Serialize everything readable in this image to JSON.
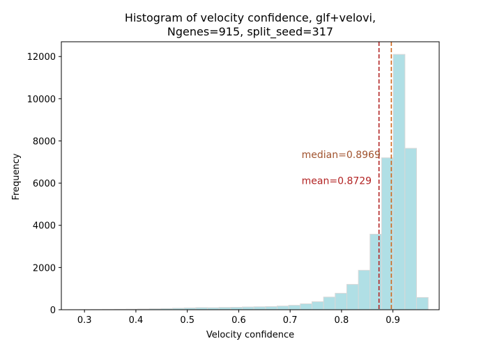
{
  "chart_data": {
    "type": "bar",
    "title_line1": "Histogram of velocity confidence, glf+velovi,",
    "title_line2": "Ngenes=915, split_seed=317",
    "xlabel": "Velocity confidence",
    "ylabel": "Frequency",
    "xlim": [
      0.255,
      0.99
    ],
    "ylim": [
      0,
      12700
    ],
    "xticks": [
      0.3,
      0.4,
      0.5,
      0.6,
      0.7,
      0.8,
      0.9
    ],
    "yticks": [
      0,
      2000,
      4000,
      6000,
      8000,
      10000,
      12000
    ],
    "bar_color": "#b0dfe5",
    "bar_edge_color": "#d8d8d8",
    "bin_width": 0.0226,
    "bins": [
      {
        "x0": 0.2679,
        "value": 3
      },
      {
        "x0": 0.2905,
        "value": 5
      },
      {
        "x0": 0.3131,
        "value": 8
      },
      {
        "x0": 0.3357,
        "value": 12
      },
      {
        "x0": 0.3583,
        "value": 18
      },
      {
        "x0": 0.3809,
        "value": 25
      },
      {
        "x0": 0.4035,
        "value": 35
      },
      {
        "x0": 0.4261,
        "value": 45
      },
      {
        "x0": 0.4487,
        "value": 55
      },
      {
        "x0": 0.4713,
        "value": 70
      },
      {
        "x0": 0.4939,
        "value": 85
      },
      {
        "x0": 0.5165,
        "value": 100
      },
      {
        "x0": 0.5391,
        "value": 95
      },
      {
        "x0": 0.5617,
        "value": 110
      },
      {
        "x0": 0.5843,
        "value": 115
      },
      {
        "x0": 0.6069,
        "value": 130
      },
      {
        "x0": 0.6295,
        "value": 140
      },
      {
        "x0": 0.6521,
        "value": 150
      },
      {
        "x0": 0.6747,
        "value": 175
      },
      {
        "x0": 0.6973,
        "value": 210
      },
      {
        "x0": 0.7199,
        "value": 280
      },
      {
        "x0": 0.7425,
        "value": 380
      },
      {
        "x0": 0.7651,
        "value": 600
      },
      {
        "x0": 0.7877,
        "value": 780
      },
      {
        "x0": 0.8103,
        "value": 1200
      },
      {
        "x0": 0.8329,
        "value": 1870
      },
      {
        "x0": 0.8555,
        "value": 3580
      },
      {
        "x0": 0.8781,
        "value": 7200
      },
      {
        "x0": 0.9007,
        "value": 12100
      },
      {
        "x0": 0.9233,
        "value": 7650
      },
      {
        "x0": 0.9459,
        "value": 580
      }
    ],
    "median": {
      "value": 0.8969,
      "label": "median=0.8969",
      "color": "#d2691e",
      "text_color": "#a0522d"
    },
    "mean": {
      "value": 0.8729,
      "label": "mean=0.8729",
      "color": "#b22222",
      "text_color": "#b22222"
    },
    "median_label_pos": {
      "x": 0.7224,
      "y": 7350
    },
    "mean_label_pos": {
      "x": 0.7224,
      "y": 6120
    }
  }
}
